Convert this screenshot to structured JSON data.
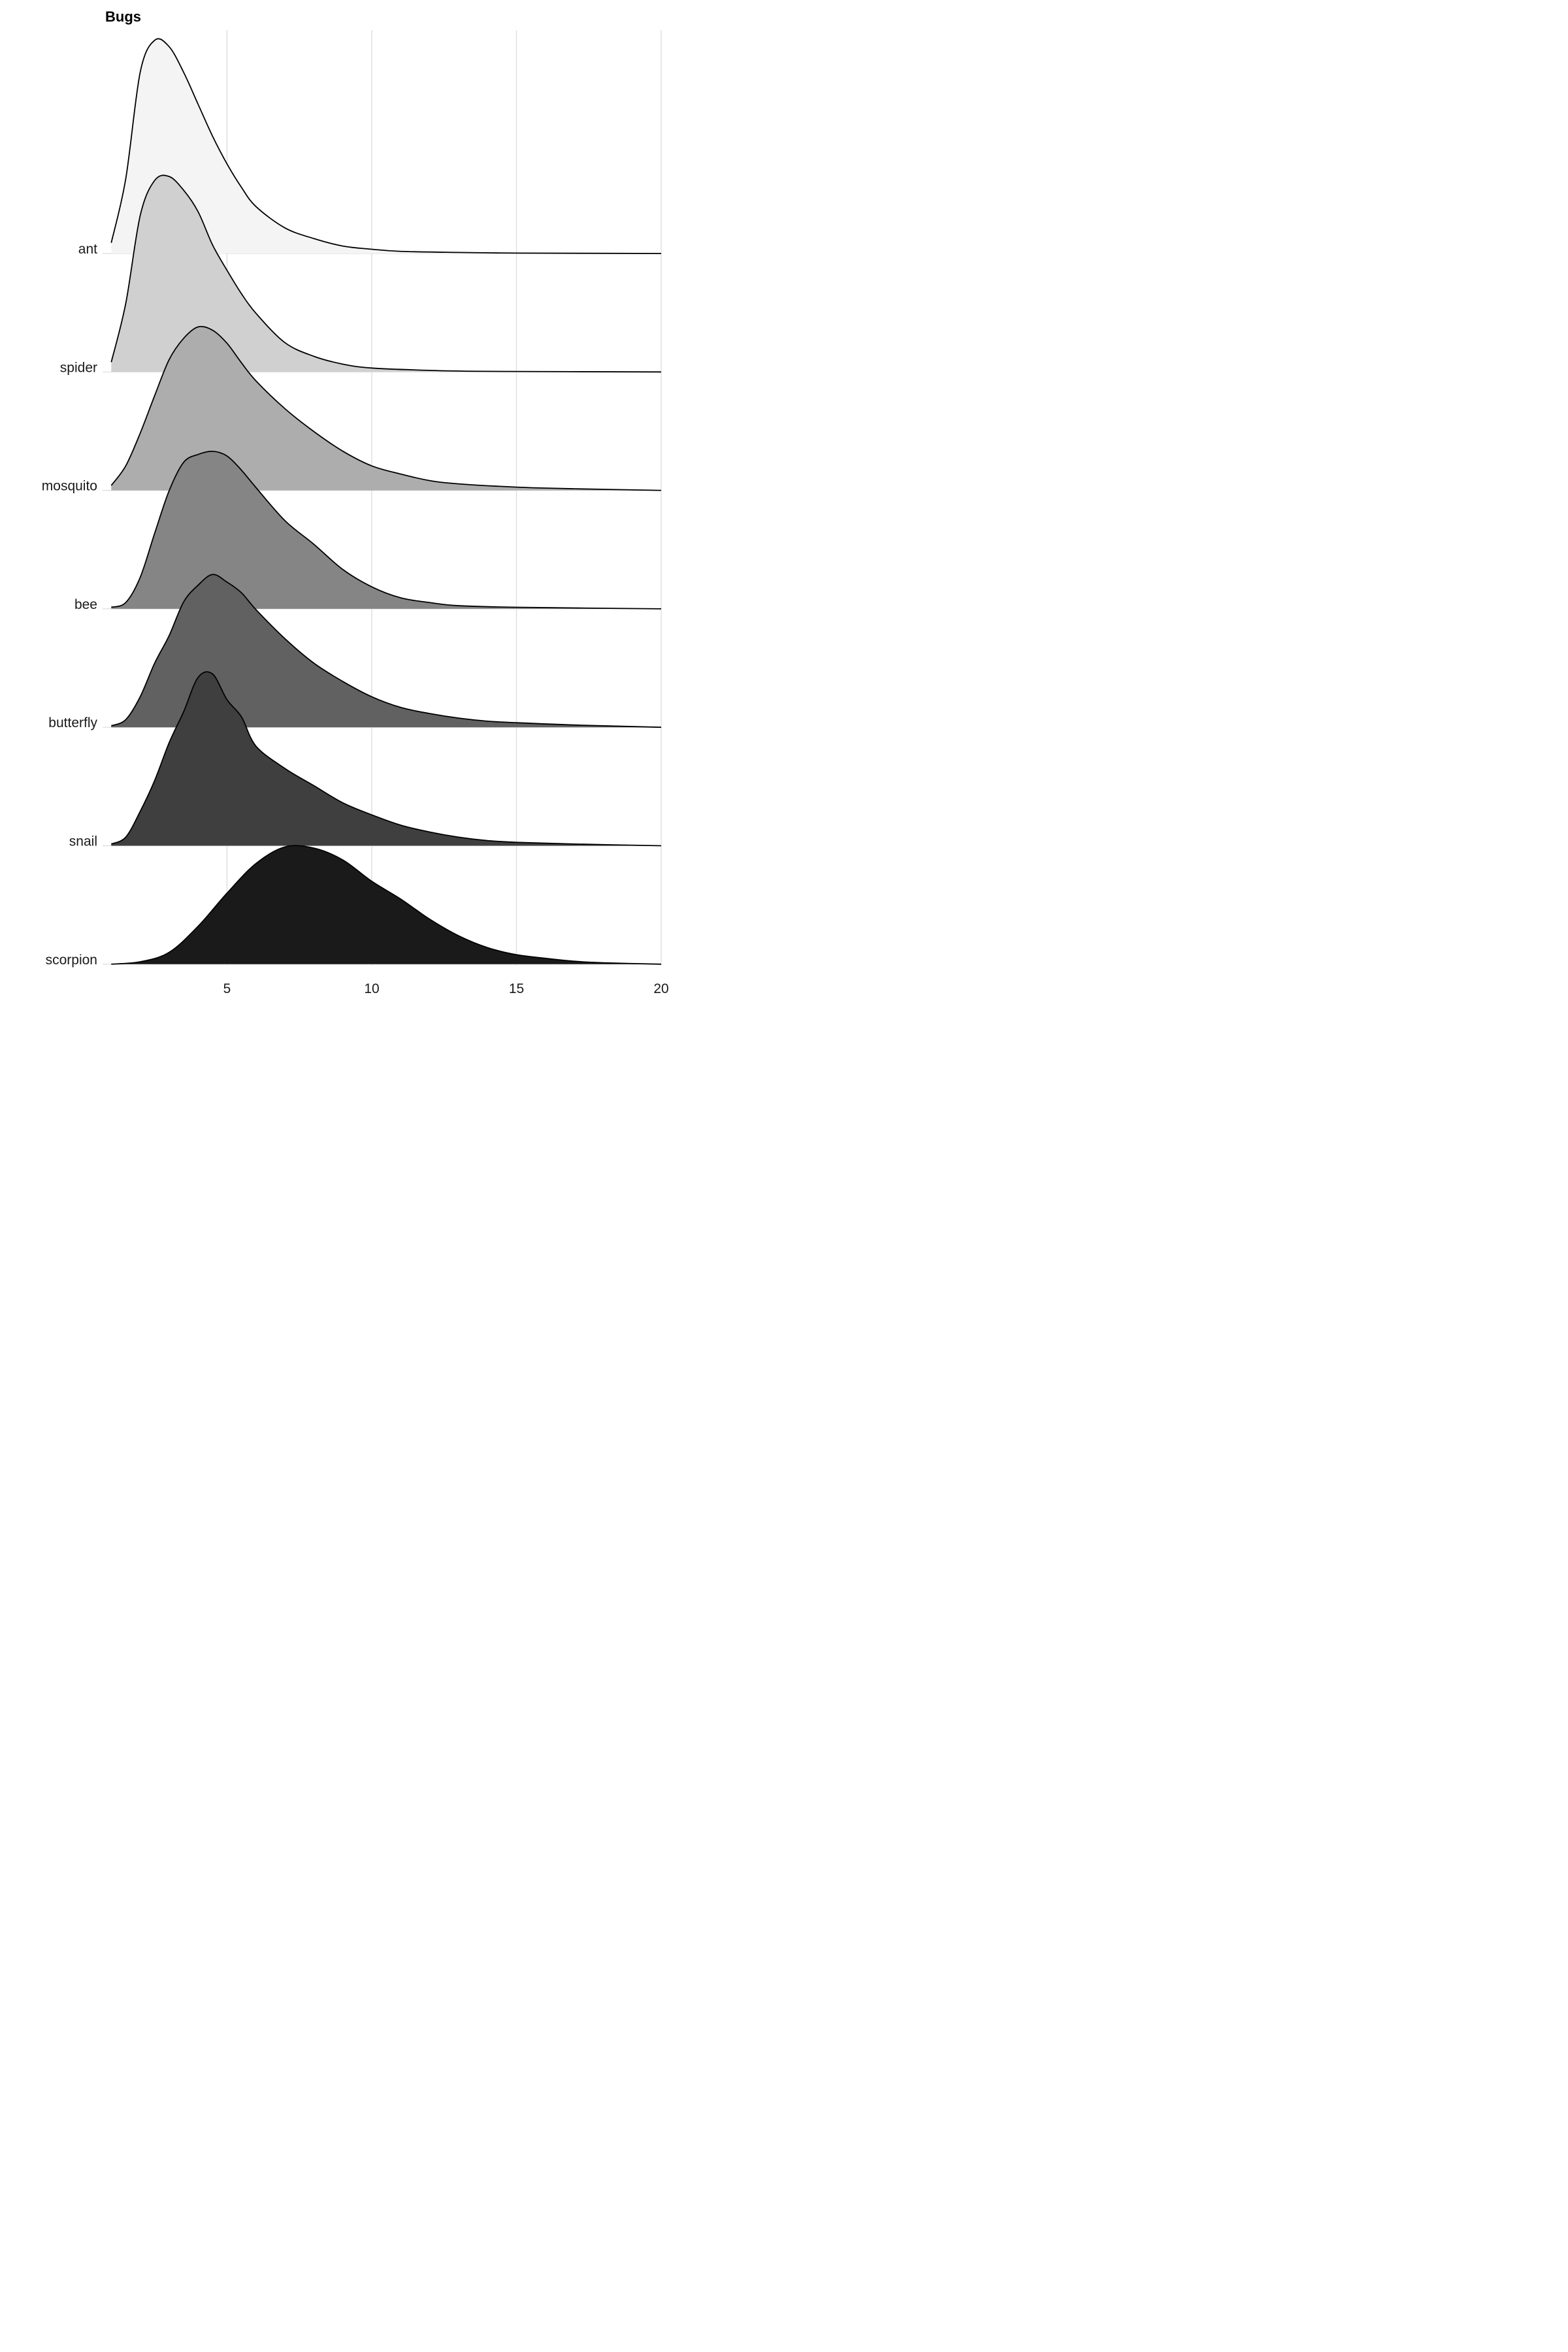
{
  "chart_data": {
    "type": "ridgeline",
    "title": "Bugs",
    "xlabel": "",
    "ylabel": "",
    "xlim": [
      0.7,
      20
    ],
    "x_ticks": [
      5,
      10,
      15,
      20
    ],
    "grid": "vertical major gridlines",
    "series": [
      {
        "name": "ant",
        "fill": "#f4f4f4",
        "peak_height": 1.8,
        "points": [
          [
            1,
            0.05
          ],
          [
            1.5,
            0.35
          ],
          [
            2,
            0.85
          ],
          [
            2.5,
            1.0
          ],
          [
            3,
            0.97
          ],
          [
            3.5,
            0.85
          ],
          [
            4,
            0.7
          ],
          [
            4.5,
            0.55
          ],
          [
            5,
            0.42
          ],
          [
            5.5,
            0.31
          ],
          [
            6,
            0.22
          ],
          [
            7,
            0.12
          ],
          [
            8,
            0.07
          ],
          [
            9,
            0.035
          ],
          [
            10,
            0.02
          ],
          [
            11,
            0.01
          ],
          [
            13,
            0.005
          ],
          [
            15,
            0.002
          ],
          [
            20,
            0
          ]
        ]
      },
      {
        "name": "spider",
        "fill": "#d0d0d0",
        "peak_height": 1.65,
        "points": [
          [
            1,
            0.05
          ],
          [
            1.5,
            0.35
          ],
          [
            2,
            0.8
          ],
          [
            2.5,
            0.98
          ],
          [
            3,
            1.0
          ],
          [
            3.5,
            0.93
          ],
          [
            4,
            0.82
          ],
          [
            4.5,
            0.65
          ],
          [
            5,
            0.52
          ],
          [
            5.5,
            0.4
          ],
          [
            6,
            0.3
          ],
          [
            7,
            0.15
          ],
          [
            8,
            0.08
          ],
          [
            9,
            0.04
          ],
          [
            10,
            0.02
          ],
          [
            12,
            0.008
          ],
          [
            14,
            0.003
          ],
          [
            20,
            0
          ]
        ]
      },
      {
        "name": "mosquito",
        "fill": "#adadad",
        "peak_height": 1.38,
        "points": [
          [
            1,
            0.03
          ],
          [
            1.5,
            0.15
          ],
          [
            2,
            0.35
          ],
          [
            2.5,
            0.58
          ],
          [
            3,
            0.8
          ],
          [
            3.5,
            0.93
          ],
          [
            4,
            1.0
          ],
          [
            4.5,
            0.98
          ],
          [
            5,
            0.9
          ],
          [
            5.5,
            0.78
          ],
          [
            6,
            0.67
          ],
          [
            7,
            0.5
          ],
          [
            8,
            0.36
          ],
          [
            9,
            0.24
          ],
          [
            10,
            0.15
          ],
          [
            11,
            0.1
          ],
          [
            12,
            0.06
          ],
          [
            13,
            0.04
          ],
          [
            15,
            0.02
          ],
          [
            17,
            0.01
          ],
          [
            20,
            0
          ]
        ]
      },
      {
        "name": "bee",
        "fill": "#858585",
        "peak_height": 1.33,
        "points": [
          [
            1,
            0.01
          ],
          [
            1.5,
            0.04
          ],
          [
            2,
            0.2
          ],
          [
            2.5,
            0.48
          ],
          [
            3,
            0.75
          ],
          [
            3.5,
            0.93
          ],
          [
            4,
            0.98
          ],
          [
            4.5,
            1.0
          ],
          [
            5,
            0.97
          ],
          [
            5.5,
            0.88
          ],
          [
            6,
            0.77
          ],
          [
            7,
            0.56
          ],
          [
            8,
            0.41
          ],
          [
            9,
            0.25
          ],
          [
            10,
            0.14
          ],
          [
            11,
            0.07
          ],
          [
            12,
            0.04
          ],
          [
            13,
            0.02
          ],
          [
            15,
            0.01
          ],
          [
            20,
            0
          ]
        ]
      },
      {
        "name": "butterfly",
        "fill": "#616161",
        "peak_height": 1.29,
        "points": [
          [
            1,
            0.01
          ],
          [
            1.5,
            0.05
          ],
          [
            2,
            0.2
          ],
          [
            2.5,
            0.42
          ],
          [
            3,
            0.6
          ],
          [
            3.5,
            0.82
          ],
          [
            4,
            0.93
          ],
          [
            4.5,
            1.0
          ],
          [
            5,
            0.95
          ],
          [
            5.5,
            0.88
          ],
          [
            6,
            0.77
          ],
          [
            7,
            0.58
          ],
          [
            8,
            0.42
          ],
          [
            9,
            0.3
          ],
          [
            10,
            0.2
          ],
          [
            11,
            0.13
          ],
          [
            12,
            0.09
          ],
          [
            13,
            0.06
          ],
          [
            14,
            0.04
          ],
          [
            15,
            0.03
          ],
          [
            17,
            0.015
          ],
          [
            20,
            0
          ]
        ]
      },
      {
        "name": "snail",
        "fill": "#3f3f3f",
        "peak_height": 1.45,
        "points": [
          [
            1,
            0.01
          ],
          [
            1.5,
            0.05
          ],
          [
            2,
            0.2
          ],
          [
            2.5,
            0.38
          ],
          [
            3,
            0.6
          ],
          [
            3.5,
            0.78
          ],
          [
            4,
            0.98
          ],
          [
            4.5,
            1.0
          ],
          [
            5,
            0.85
          ],
          [
            5.5,
            0.75
          ],
          [
            6,
            0.58
          ],
          [
            7,
            0.45
          ],
          [
            8,
            0.35
          ],
          [
            9,
            0.25
          ],
          [
            10,
            0.18
          ],
          [
            11,
            0.12
          ],
          [
            12,
            0.08
          ],
          [
            13,
            0.05
          ],
          [
            14,
            0.03
          ],
          [
            15,
            0.02
          ],
          [
            17,
            0.01
          ],
          [
            20,
            0
          ]
        ]
      },
      {
        "name": "scorpion",
        "fill": "#1a1a1a",
        "peak_height": 1.0,
        "points": [
          [
            1,
            0.0
          ],
          [
            2,
            0.02
          ],
          [
            3,
            0.1
          ],
          [
            4,
            0.32
          ],
          [
            5,
            0.6
          ],
          [
            6,
            0.85
          ],
          [
            7,
            0.99
          ],
          [
            8,
            0.98
          ],
          [
            9,
            0.88
          ],
          [
            10,
            0.7
          ],
          [
            11,
            0.55
          ],
          [
            12,
            0.38
          ],
          [
            13,
            0.24
          ],
          [
            14,
            0.14
          ],
          [
            15,
            0.08
          ],
          [
            16,
            0.05
          ],
          [
            17,
            0.025
          ],
          [
            18,
            0.012
          ],
          [
            20,
            0
          ]
        ]
      }
    ]
  }
}
